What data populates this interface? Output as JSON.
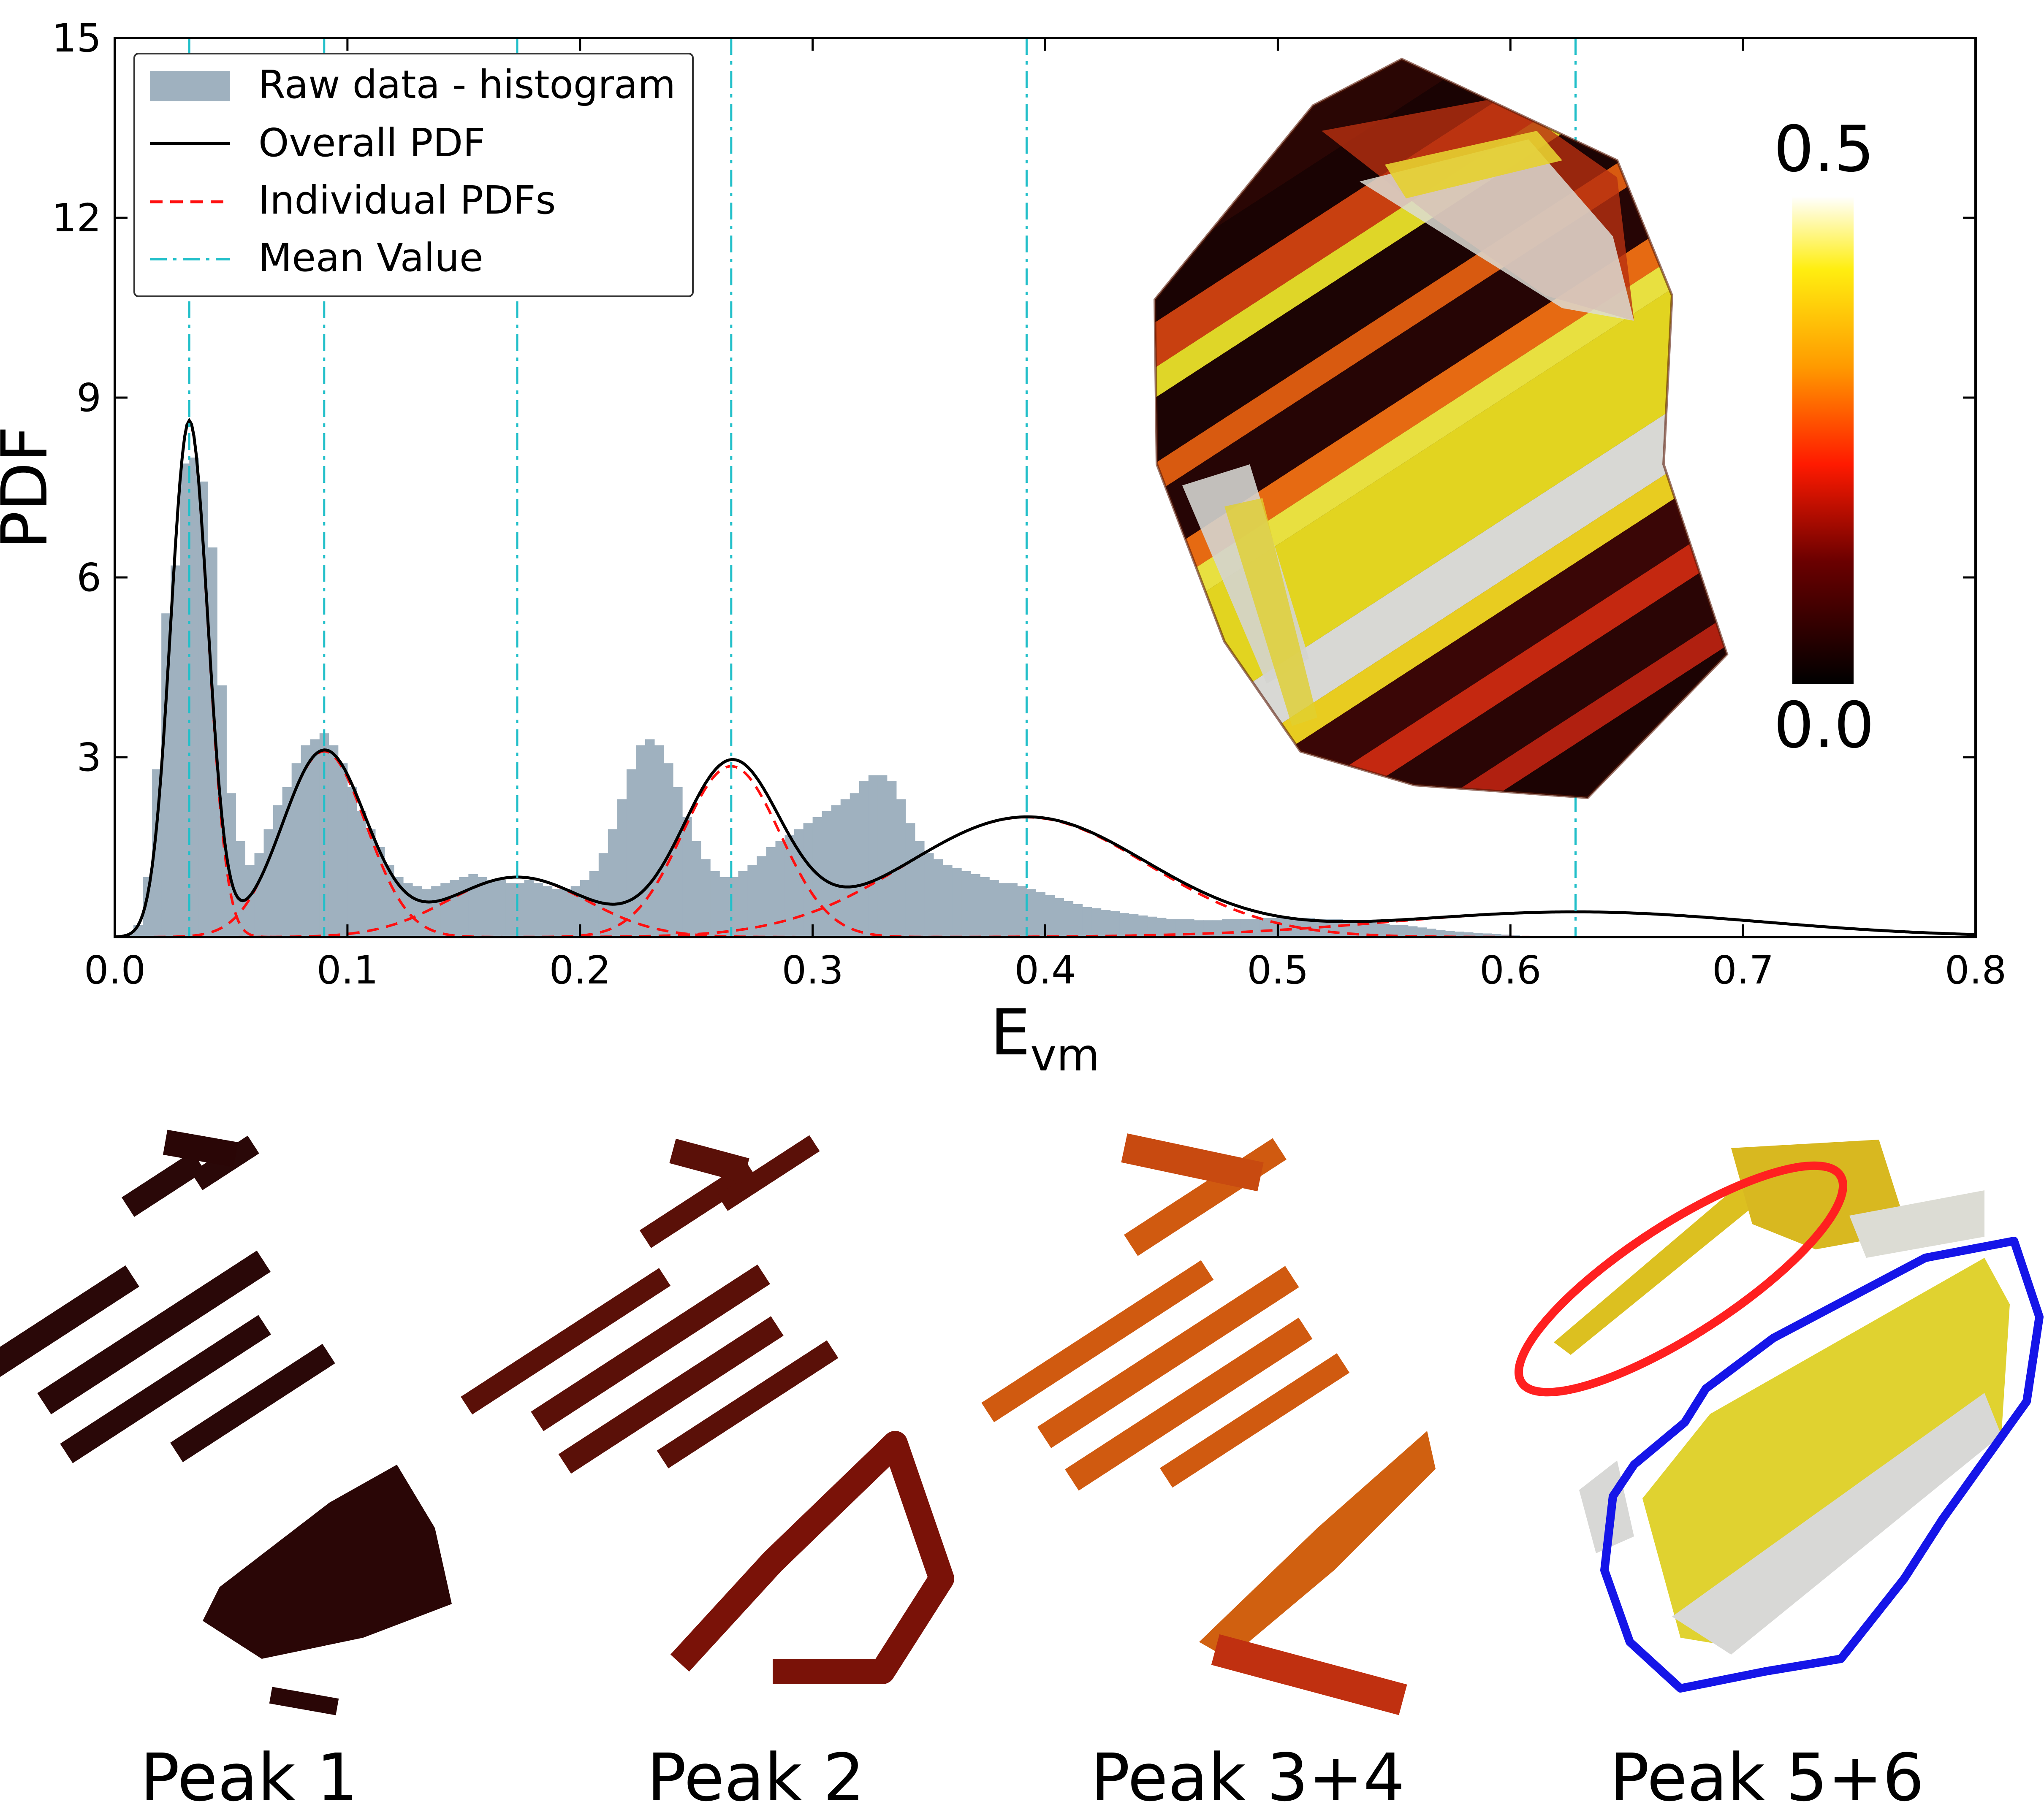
{
  "chart_data": {
    "type": "histogram-with-fitted-pdfs",
    "xlabel_main": "E",
    "xlabel_sub": "vm",
    "ylabel": "PDF",
    "xlim": [
      0.0,
      0.8
    ],
    "ylim": [
      0,
      15
    ],
    "x_ticks": [
      "0.0",
      "0.1",
      "0.2",
      "0.3",
      "0.4",
      "0.5",
      "0.6",
      "0.7",
      "0.8"
    ],
    "x_tick_values": [
      0.0,
      0.1,
      0.2,
      0.3,
      0.4,
      0.5,
      0.6,
      0.7,
      0.8
    ],
    "y_ticks": [
      "3",
      "6",
      "9",
      "12",
      "15"
    ],
    "y_tick_values": [
      3,
      6,
      9,
      12,
      15
    ],
    "legend": {
      "position": "top-left",
      "entries": [
        "Raw data - histogram",
        "Overall PDF",
        "Individual PDFs",
        "Mean Value"
      ]
    },
    "mean_values": [
      0.032,
      0.09,
      0.173,
      0.265,
      0.392,
      0.628
    ],
    "components": [
      {
        "name": "Peak 1",
        "mean": 0.032,
        "sd": 0.008,
        "amplitude": 8.6
      },
      {
        "name": "Peak 2",
        "mean": 0.09,
        "sd": 0.018,
        "amplitude": 3.1
      },
      {
        "name": "Peak 3",
        "mean": 0.173,
        "sd": 0.03,
        "amplitude": 1.0
      },
      {
        "name": "Peak 4",
        "mean": 0.265,
        "sd": 0.021,
        "amplitude": 2.85
      },
      {
        "name": "Peak 5",
        "mean": 0.392,
        "sd": 0.052,
        "amplitude": 2.0
      },
      {
        "name": "Peak 6",
        "mean": 0.628,
        "sd": 0.08,
        "amplitude": 0.42
      }
    ],
    "histogram": {
      "bin_start": 0.004,
      "bin_width": 0.004,
      "values": [
        0.05,
        0.2,
        1.0,
        2.8,
        5.4,
        6.2,
        7.9,
        8.0,
        7.6,
        6.5,
        4.2,
        2.4,
        1.6,
        1.2,
        1.4,
        1.8,
        2.2,
        2.5,
        2.9,
        3.2,
        3.3,
        3.4,
        3.2,
        2.9,
        2.5,
        2.1,
        1.8,
        1.5,
        1.2,
        1.0,
        0.9,
        0.85,
        0.8,
        0.85,
        0.9,
        0.95,
        1.0,
        1.05,
        1.0,
        0.95,
        0.95,
        0.9,
        0.9,
        0.95,
        0.9,
        0.85,
        0.8,
        0.8,
        0.85,
        0.95,
        1.1,
        1.4,
        1.8,
        2.3,
        2.8,
        3.2,
        3.3,
        3.2,
        2.9,
        2.5,
        2.0,
        1.6,
        1.3,
        1.1,
        1.0,
        1.0,
        1.1,
        1.2,
        1.35,
        1.5,
        1.6,
        1.7,
        1.8,
        1.9,
        2.0,
        2.1,
        2.2,
        2.3,
        2.4,
        2.6,
        2.7,
        2.7,
        2.6,
        2.3,
        1.9,
        1.6,
        1.4,
        1.3,
        1.2,
        1.15,
        1.1,
        1.05,
        1.0,
        0.95,
        0.9,
        0.9,
        0.85,
        0.8,
        0.75,
        0.7,
        0.65,
        0.6,
        0.55,
        0.5,
        0.48,
        0.45,
        0.43,
        0.4,
        0.38,
        0.36,
        0.34,
        0.32,
        0.3,
        0.3,
        0.3,
        0.28,
        0.28,
        0.28,
        0.3,
        0.3,
        0.3,
        0.3,
        0.32,
        0.32,
        0.32,
        0.32,
        0.32,
        0.32,
        0.3,
        0.3,
        0.3,
        0.28,
        0.26,
        0.25,
        0.24,
        0.22,
        0.2,
        0.2,
        0.18,
        0.16,
        0.14,
        0.12,
        0.1,
        0.09,
        0.08,
        0.07,
        0.06,
        0.05,
        0.04,
        0.03,
        0.02,
        0.02,
        0.01,
        0.01
      ]
    },
    "inset_colorbar": {
      "max_label": "0.5",
      "min_label": "0.0"
    }
  },
  "panels": [
    {
      "label": "Peak 1"
    },
    {
      "label": "Peak 2"
    },
    {
      "label": "Peak 3+4"
    },
    {
      "label": "Peak 5+6"
    }
  ],
  "colors": {
    "histogram": "#9fb1bf",
    "overall_pdf": "#000000",
    "individual_pdf": "#ff1010",
    "mean_line": "#22bfc9",
    "highlight_red": "#ff2020",
    "highlight_blue": "#1515e8"
  }
}
